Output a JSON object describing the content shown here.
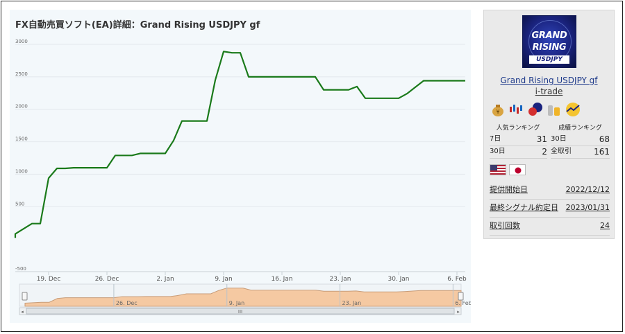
{
  "page": {
    "title": "FX自動売買ソフト(EA)詳細：Grand Rising USDJPY gf"
  },
  "chart_data": {
    "type": "line",
    "title": "FX自動売買ソフト(EA)詳細：Grand Rising USDJPY gf",
    "x_ticks": [
      "19. Dec",
      "26. Dec",
      "2. Jan",
      "9. Jan",
      "16. Jan",
      "23. Jan",
      "30. Jan",
      "6. Feb"
    ],
    "y_ticks": [
      3000,
      2500,
      2000,
      1500,
      1000,
      500,
      -500
    ],
    "ylim": [
      -500,
      3000
    ],
    "grid": true,
    "line_color": "#1a7a1a",
    "series": [
      {
        "x": [
          "2022-12-15",
          "2022-12-15",
          "2022-12-17",
          "2022-12-17",
          "2022-12-18",
          "2022-12-19",
          "2022-12-20",
          "2022-12-21",
          "2022-12-22",
          "2022-12-23",
          "2022-12-25",
          "2022-12-26",
          "2022-12-27",
          "2022-12-29",
          "2022-12-30",
          "2022-12-31",
          "2023-01-02",
          "2023-01-03",
          "2023-01-04",
          "2023-01-06",
          "2023-01-07",
          "2023-01-08",
          "2023-01-09",
          "2023-01-10",
          "2023-01-11",
          "2023-01-12",
          "2023-01-13",
          "2023-01-14",
          "2023-01-15",
          "2023-01-17",
          "2023-01-19",
          "2023-01-20",
          "2023-01-21",
          "2023-01-22",
          "2023-01-23",
          "2023-01-24",
          "2023-01-25",
          "2023-01-26",
          "2023-01-27",
          "2023-01-29",
          "2023-01-30",
          "2023-01-31",
          "2023-02-02",
          "2023-02-05",
          "2023-02-07"
        ],
        "values": [
          20,
          80,
          240,
          240,
          240,
          940,
          1090,
          1090,
          1100,
          1100,
          1100,
          1100,
          1290,
          1290,
          1320,
          1320,
          1320,
          1520,
          1820,
          1820,
          1820,
          2450,
          2890,
          2870,
          2870,
          2500,
          2500,
          2500,
          2500,
          2500,
          2500,
          2500,
          2300,
          2300,
          2300,
          2300,
          2350,
          2170,
          2170,
          2170,
          2170,
          2240,
          2440,
          2440,
          2440
        ]
      }
    ],
    "navigator": {
      "x_ticks": [
        "26. Dec",
        "9. Jan",
        "23. Jan",
        "6. Feb"
      ],
      "scrollbar_label": "III"
    }
  },
  "ea": {
    "logo_line1": "GRAND",
    "logo_line2": "RISING",
    "logo_line3": "USDJPY",
    "name": "Grand Rising USDJPY gf",
    "vendor": "i-trade",
    "popularity_label": "人気ランキング",
    "performance_label": "成績ランキング",
    "popularity": [
      {
        "label": "7日",
        "value": "31"
      },
      {
        "label": "30日",
        "value": "2"
      }
    ],
    "performance": [
      {
        "label": "30日",
        "value": "68"
      },
      {
        "label": "全取引",
        "value": "161"
      }
    ],
    "info": [
      {
        "label": "提供開始日",
        "value": "2022/12/12"
      },
      {
        "label": "最終シグナル約定日",
        "value": "2023/01/31"
      },
      {
        "label": "取引回数",
        "value": "24"
      }
    ],
    "badge_icons": [
      "money-bag-icon",
      "candlestick-icon",
      "chat-bubbles-icon",
      "coins-icon",
      "sunrise-chart-icon"
    ],
    "flag_icons": [
      "us-flag-icon",
      "japan-flag-icon"
    ]
  }
}
